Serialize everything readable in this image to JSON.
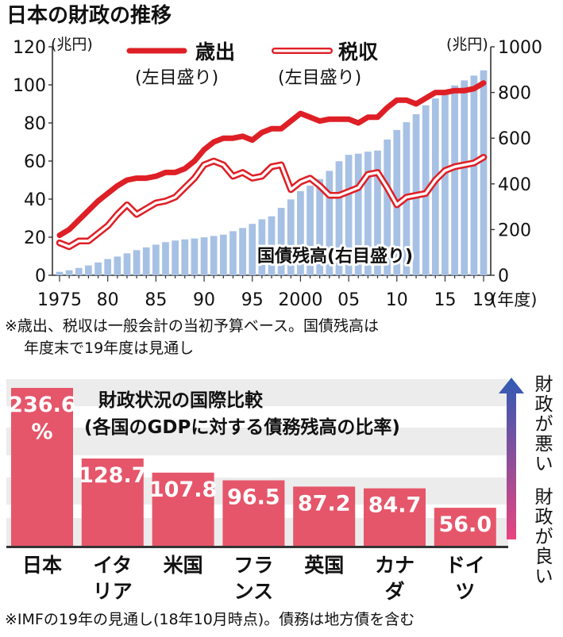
{
  "chart_data": [
    {
      "type": "bar",
      "title": "日本の財政の推移",
      "unit_left": "(兆円)",
      "unit_right": "(兆円)",
      "x_unit": "(年度)",
      "x": [
        1975,
        1976,
        1977,
        1978,
        1979,
        1980,
        1981,
        1982,
        1983,
        1984,
        1985,
        1986,
        1987,
        1988,
        1989,
        1990,
        1991,
        1992,
        1993,
        1994,
        1995,
        1996,
        1997,
        1998,
        1999,
        2000,
        2001,
        2002,
        2003,
        2004,
        2005,
        2006,
        2007,
        2008,
        2009,
        2010,
        2011,
        2012,
        2013,
        2014,
        2015,
        2016,
        2017,
        2018,
        2019
      ],
      "x_tick_labels": [
        "1975",
        "80",
        "85",
        "90",
        "95",
        "2000",
        "05",
        "10",
        "15",
        "19"
      ],
      "x_tick_years": [
        1975,
        1980,
        1985,
        1990,
        1995,
        2000,
        2005,
        2010,
        2015,
        2019
      ],
      "ylim_left": [
        0,
        120
      ],
      "yticks_left": [
        "0",
        "20",
        "40",
        "60",
        "80",
        "100",
        "120"
      ],
      "ylim_right": [
        0,
        1000
      ],
      "yticks_right": [
        "0",
        "200",
        "400",
        "600",
        "800",
        "1000"
      ],
      "series": [
        {
          "name": "国債残高(右目盛り)",
          "axis": "right",
          "style": "bar",
          "values": [
            15,
            22,
            32,
            43,
            56,
            71,
            82,
            96,
            110,
            122,
            134,
            145,
            152,
            157,
            161,
            166,
            172,
            178,
            193,
            207,
            225,
            245,
            258,
            295,
            332,
            368,
            392,
            421,
            457,
            499,
            527,
            532,
            541,
            546,
            594,
            636,
            670,
            705,
            744,
            774,
            805,
            831,
            853,
            874,
            897
          ]
        },
        {
          "name": "歳出",
          "legend_sub": "(左目盛り)",
          "axis": "left",
          "style": "line",
          "values": [
            21,
            24,
            29,
            34,
            39,
            43,
            47,
            50,
            51,
            51,
            52,
            54,
            54,
            56,
            60,
            66,
            70,
            72,
            72,
            73,
            71,
            75,
            77,
            77,
            81,
            85,
            83,
            81,
            82,
            82,
            82,
            80,
            83,
            83,
            88,
            92,
            92,
            90,
            93,
            96,
            96,
            97,
            97,
            98,
            101
          ]
        },
        {
          "name": "税収",
          "legend_sub": "(左目盛り)",
          "axis": "left",
          "style": "line",
          "values": [
            17,
            15,
            18,
            18,
            22,
            26,
            32,
            37,
            32,
            35,
            38,
            39,
            41,
            46,
            51,
            58,
            60,
            58,
            52,
            54,
            51,
            52,
            57,
            58,
            45,
            49,
            51,
            47,
            42,
            42,
            44,
            46,
            53,
            54,
            46,
            37,
            41,
            42,
            43,
            50,
            55,
            57,
            58,
            59,
            62
          ]
        }
      ],
      "footnote_lines": [
        "※歳出、税収は一般会計の当初予算ベース。国債残高は",
        "年度末で19年度は見通し"
      ]
    },
    {
      "type": "bar",
      "title_lines": [
        "財政状況の国際比較",
        "(各国のGDPに対する債務残高の比率)"
      ],
      "categories": [
        "日本",
        "イタリア",
        "米国",
        "フランス",
        "英国",
        "カナダ",
        "ドイツ"
      ],
      "category_label_lines": [
        [
          "日本"
        ],
        [
          "イタ",
          "リア"
        ],
        [
          "米国"
        ],
        [
          "フラ",
          "ンス"
        ],
        [
          "英国"
        ],
        [
          "カナ",
          "ダ"
        ],
        [
          "ドイ",
          "ツ"
        ]
      ],
      "values": [
        236.6,
        128.7,
        107.8,
        96.5,
        87.2,
        84.7,
        56.0
      ],
      "value_labels": [
        [
          "236.6",
          "%"
        ],
        [
          "128.7"
        ],
        [
          "107.8"
        ],
        [
          "96.5"
        ],
        [
          "87.2"
        ],
        [
          "84.7"
        ],
        [
          "56.0"
        ]
      ],
      "scale_bad_lines": [
        "財",
        "政",
        "が",
        "悪",
        "い"
      ],
      "scale_good_lines": [
        "財",
        "政",
        "が",
        "良",
        "い"
      ],
      "footnote": "※IMFの19年の見通し(18年10月時点)。債務は地方債を含む"
    }
  ],
  "colors": {
    "bar_debt": "#a7c1e4",
    "expenditure": "#df1f26",
    "tax_outline": "#df1f26",
    "intl_bar": "#e5566a",
    "bg_stripe": "#ececec",
    "arrow_top": "#2f5ab4",
    "arrow_bottom": "#e8457f"
  }
}
